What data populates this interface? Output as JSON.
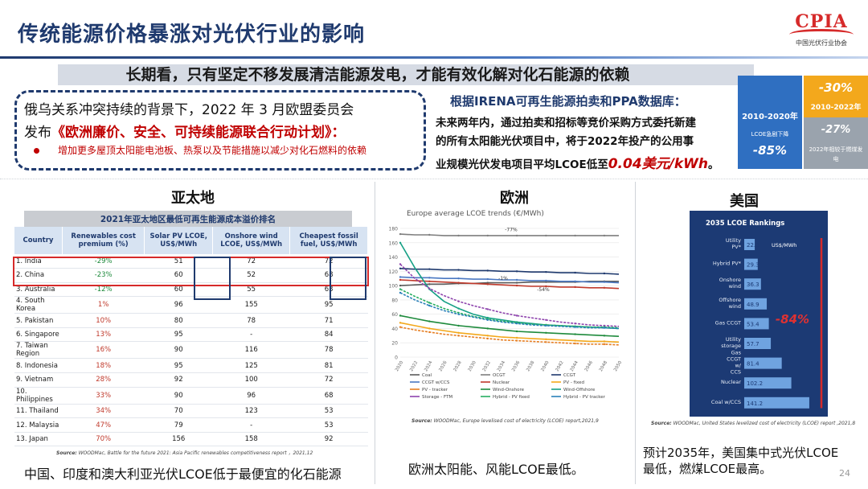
{
  "header": {
    "title": "传统能源价格暴涨对光伏行业的影响",
    "logo_text": "CPIA",
    "logo_cn": "中国光伏行业协会"
  },
  "banner": "长期看，只有坚定不移发展清洁能源发电，才能有效化解对化石能源的依赖",
  "callout": {
    "line1": "俄乌关系冲突持续的背景下，2022 年 3 月欧盟委员会",
    "line2_prefix": "发布",
    "line2_plan": "《欧洲廉价、安全、可持续能源联合行动计划》：",
    "bullet": "增加更多屋顶太阳能电池板、热泵以及节能措施以减少对化石燃料的依赖"
  },
  "irena": {
    "heading": "根据IRENA可再生能源拍卖和PPA数据库：",
    "line1": "未来两年内，通过拍卖和招标等竞价采购方式委托新建",
    "line2": "的所有太阳能光伏项目中，将于2022年投产的公用事",
    "line3_prefix": "业规模光伏发电项目平均LCOE低至",
    "line3_price": "0.04美元/kWh",
    "line3_suffix": "。"
  },
  "stats": {
    "blue_period": "2010-2020年",
    "blue_label": "LCOE急剧下降",
    "blue_value": "-85%",
    "orange_value": "-30%",
    "orange_period": "2010-2022年",
    "gray_value": "-27%",
    "gray_label": "2022年相较于燃煤发电"
  },
  "apac": {
    "region": "亚太地",
    "table_title": "2021年亚太地区最低可再生能源成本溢价排名",
    "columns": [
      "Country",
      "Renewables cost premium (%)",
      "Solar PV LCOE, US$/MWh",
      "Onshore wind LCOE, US$/MWh",
      "Cheapest fossil fuel, US$/MWh"
    ],
    "rows": [
      [
        "1. India",
        "-29%",
        "51",
        "72",
        "72"
      ],
      [
        "2. China",
        "-23%",
        "60",
        "52",
        "68"
      ],
      [
        "3. Australia",
        "-12%",
        "60",
        "55",
        "63"
      ],
      [
        "4. South Korea",
        "1%",
        "96",
        "155",
        "95"
      ],
      [
        "5. Pakistan",
        "10%",
        "80",
        "78",
        "71"
      ],
      [
        "6. Singapore",
        "13%",
        "95",
        "-",
        "84"
      ],
      [
        "7. Taiwan Region",
        "16%",
        "90",
        "116",
        "78"
      ],
      [
        "8. Indonesia",
        "18%",
        "95",
        "125",
        "81"
      ],
      [
        "9. Vietnam",
        "28%",
        "92",
        "100",
        "72"
      ],
      [
        "10. Philippines",
        "33%",
        "90",
        "96",
        "68"
      ],
      [
        "11. Thailand",
        "34%",
        "70",
        "123",
        "53"
      ],
      [
        "12. Malaysia",
        "47%",
        "79",
        "-",
        "53"
      ],
      [
        "13. Japan",
        "70%",
        "156",
        "158",
        "92"
      ]
    ],
    "source_prefix": "Source:",
    "source": " WOODMac, Battle for the future 2021: Asia Pacific renewables competitiveness report ，2021,12",
    "caption": "中国、印度和澳大利亚光伏LCOE低于最便宜的化石能源"
  },
  "europe": {
    "region": "欧洲",
    "source_prefix": "Source:",
    "source": " WOODMac, Europe levelised cost of electricity (LCOE) report,2021,9",
    "caption": "欧洲太阳能、风能LCOE最低。"
  },
  "usa": {
    "region": "美国",
    "source_prefix": "Source:",
    "source": " WOODMac, United States levelized cost of electricity (LCOE) report ,2021,8",
    "caption": "预计2035年，美国集中式光伏LCOE 最低，燃煤LCOE最高。"
  },
  "page_number": "24",
  "chart_data": [
    {
      "type": "line",
      "title": "Europe average LCOE trends (€/MWh)",
      "x": [
        2020,
        2022,
        2024,
        2026,
        2028,
        2030,
        2032,
        2034,
        2036,
        2038,
        2040,
        2042,
        2044,
        2046,
        2048,
        2050
      ],
      "ylim": [
        0,
        180
      ],
      "yticks": [
        0,
        20,
        40,
        60,
        80,
        100,
        120,
        140,
        160,
        180
      ],
      "annotations": [
        "-77%",
        "-1%",
        "-54%"
      ],
      "series": [
        {
          "name": "Coal",
          "color": "#5b5b5b",
          "values": [
            100,
            101,
            102,
            102,
            103,
            103,
            104,
            104,
            104,
            105,
            105,
            105,
            105,
            106,
            106,
            106
          ]
        },
        {
          "name": "OCGT",
          "color": "#7f7f7f",
          "values": [
            172,
            171,
            171,
            170,
            170,
            170,
            170,
            170,
            170,
            170,
            170,
            170,
            170,
            170,
            170,
            170
          ]
        },
        {
          "name": "CCGT",
          "color": "#1f3a6e",
          "values": [
            124,
            123,
            123,
            122,
            122,
            121,
            121,
            120,
            120,
            119,
            119,
            118,
            118,
            117,
            117,
            116
          ]
        },
        {
          "name": "CCGT w/CCS",
          "color": "#4a78c2",
          "values": [
            112,
            111,
            111,
            110,
            110,
            109,
            109,
            108,
            108,
            107,
            107,
            106,
            106,
            105,
            105,
            104
          ]
        },
        {
          "name": "Nuclear",
          "color": "#c0392b",
          "values": [
            108,
            107,
            106,
            105,
            104,
            103,
            102,
            101,
            100,
            99,
            99,
            98,
            98,
            97,
            97,
            96
          ]
        },
        {
          "name": "PV - fixed",
          "color": "#f3a81c",
          "values": [
            48,
            44,
            40,
            37,
            34,
            32,
            30,
            28,
            27,
            26,
            25,
            24,
            23,
            22,
            22,
            21
          ]
        },
        {
          "name": "PV - tracker",
          "color": "#e67e22",
          "values": [
            42,
            38,
            35,
            32,
            30,
            28,
            26,
            24,
            23,
            22,
            21,
            20,
            19,
            18,
            18,
            17
          ]
        },
        {
          "name": "Wind-Onshore",
          "color": "#1e8a3c",
          "values": [
            58,
            54,
            50,
            47,
            44,
            42,
            40,
            38,
            36,
            35,
            34,
            33,
            32,
            31,
            30,
            29
          ]
        },
        {
          "name": "Wind-Offshore",
          "color": "#16a085",
          "values": [
            160,
            125,
            95,
            78,
            68,
            60,
            55,
            52,
            49,
            47,
            45,
            44,
            43,
            42,
            41,
            40
          ]
        },
        {
          "name": "Storage - FTM",
          "color": "#8e44ad",
          "values": [
            130,
            110,
            96,
            86,
            78,
            72,
            67,
            62,
            58,
            55,
            52,
            49,
            47,
            45,
            44,
            43
          ]
        },
        {
          "name": "Hybrid - PV fixed",
          "color": "#27ae60",
          "values": [
            95,
            85,
            76,
            68,
            62,
            57,
            53,
            50,
            48,
            46,
            45,
            44,
            43,
            42,
            42,
            41
          ]
        },
        {
          "name": "Hybrid - PV tracker",
          "color": "#2980b9",
          "values": [
            90,
            80,
            72,
            65,
            60,
            56,
            52,
            49,
            47,
            45,
            44,
            43,
            42,
            41,
            41,
            40
          ]
        }
      ]
    },
    {
      "type": "bar",
      "title": "2035 LCOE Rankings",
      "unit": "US$/MWh",
      "categories": [
        "Utility PV*",
        "Hybrid PV*",
        "Onshore wind",
        "Offshore wind",
        "Gas CCGT",
        "Utility storage",
        "Gas CCGT w/ CCS",
        "Nuclear",
        "Coal w/CCS"
      ],
      "values": [
        22.8,
        29.3,
        36.3,
        48.9,
        53.4,
        57.7,
        81.4,
        102.2,
        141.2
      ],
      "annotation": "-84%"
    }
  ]
}
